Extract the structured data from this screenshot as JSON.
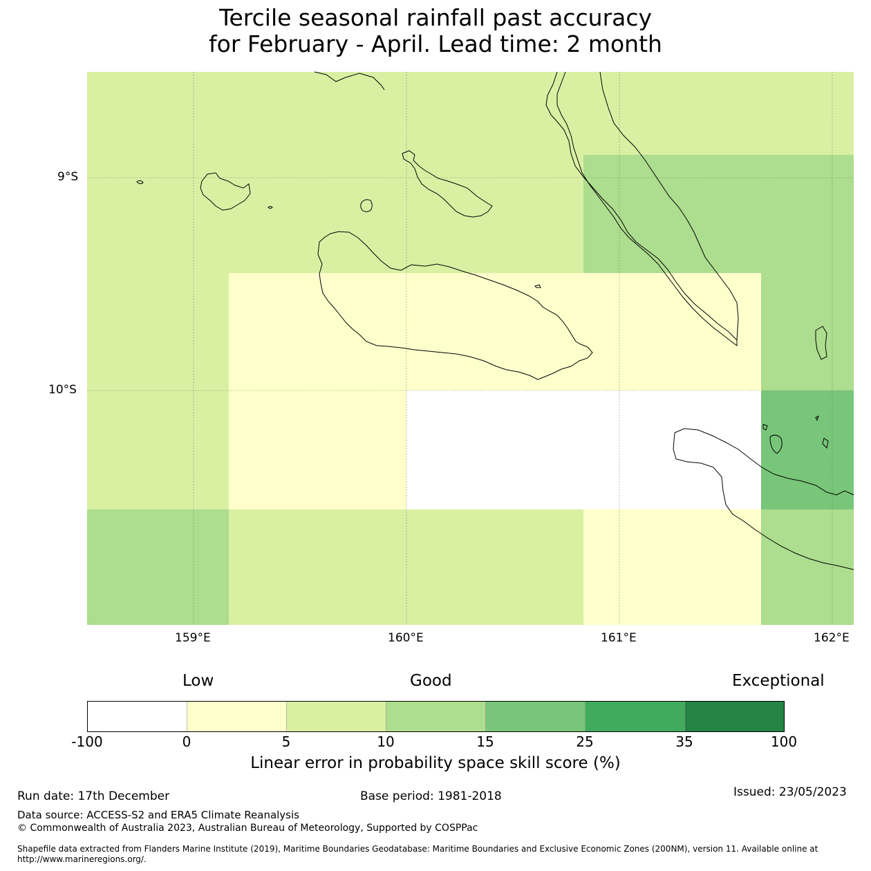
{
  "title": {
    "line1": "Tercile seasonal rainfall past accuracy",
    "line2": "for February - April. Lead time: 2 month"
  },
  "map": {
    "lat_labels": [
      "9°S",
      "10°S"
    ],
    "lon_labels": [
      "159°E",
      "160°E",
      "161°E",
      "162°E"
    ],
    "lon_range": [
      158.5,
      162.1
    ],
    "lat_range": [
      -11.1,
      -8.5
    ]
  },
  "colorbar": {
    "categories": [
      "Low",
      "Good",
      "Exceptional"
    ],
    "ticks": [
      "-100",
      "0",
      "5",
      "10",
      "15",
      "25",
      "35",
      "100"
    ],
    "colors": [
      "#ffffff",
      "#ffffcc",
      "#d9f0a3",
      "#addd8e",
      "#78c679",
      "#41ab5d",
      "#238443"
    ],
    "label": "Linear error in probability space skill score (%)"
  },
  "footer": {
    "run_date": "Run date: 17th December",
    "base_period": "Base period: 1981-2018",
    "issued": "Issued: 23/05/2023",
    "data_source": "Data source: ACCESS-S2 and ERA5 Climate Reanalysis",
    "copyright": "© Commonwealth of Australia 2023, Australian Bureau of Meteorology, Supported by COSPPac",
    "shapefile_line1": "Shapefile data extracted from Flanders Marine Institute (2019), Maritime Boundaries Geodatabase: Maritime Boundaries and Exclusive Economic Zones (200NM), version 11. Available online at",
    "shapefile_line2": "http://www.marineregions.org/."
  }
}
